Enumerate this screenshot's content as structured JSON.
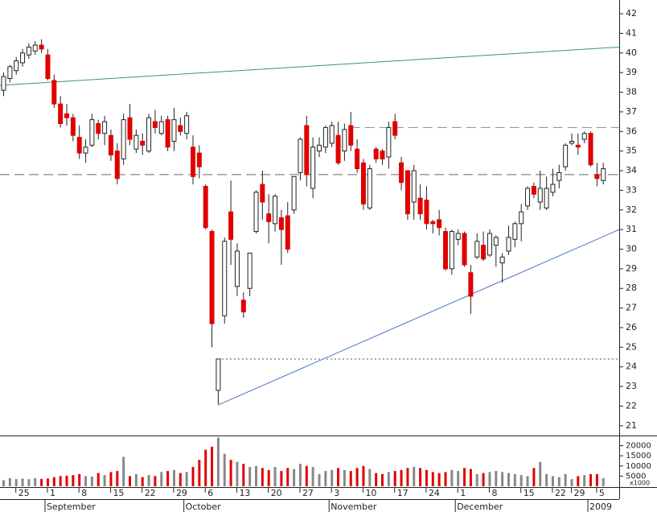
{
  "chart_data": {
    "type": "candlestick",
    "up_color": "#ffffff",
    "down_color": "#e00000",
    "wick_color": "#222222",
    "volume_up_color": "#888888",
    "volume_down_color": "#e00000",
    "ylim": [
      20.5,
      42.7
    ],
    "yticks": [
      21,
      22,
      23,
      24,
      25,
      26,
      27,
      28,
      29,
      30,
      31,
      32,
      33,
      34,
      35,
      36,
      37,
      38,
      39,
      40,
      41,
      42
    ],
    "volume_ylim": [
      0,
      25000
    ],
    "volume_yticks": [
      5000,
      10000,
      15000,
      20000
    ],
    "volume_unit_label": "x1000",
    "categories": [
      null,
      null,
      "25",
      null,
      null,
      null,
      null,
      "1",
      null,
      null,
      null,
      null,
      "8",
      null,
      null,
      null,
      null,
      "15",
      null,
      null,
      null,
      null,
      "22",
      null,
      null,
      null,
      null,
      "29",
      null,
      null,
      null,
      null,
      "6",
      null,
      null,
      null,
      null,
      "13",
      null,
      null,
      null,
      null,
      "20",
      null,
      null,
      null,
      null,
      "27",
      null,
      null,
      null,
      null,
      "3",
      null,
      null,
      null,
      null,
      "10",
      null,
      null,
      null,
      null,
      "17",
      null,
      null,
      null,
      null,
      "24",
      null,
      null,
      null,
      null,
      "1",
      null,
      null,
      null,
      null,
      "8",
      null,
      null,
      null,
      null,
      "15",
      null,
      null,
      null,
      null,
      "22",
      null,
      null,
      "29",
      null,
      null,
      null,
      "5",
      null
    ],
    "month_labels": [
      null,
      null,
      null,
      null,
      null,
      null,
      null,
      "September",
      null,
      null,
      null,
      null,
      null,
      null,
      null,
      null,
      null,
      null,
      null,
      null,
      null,
      null,
      null,
      null,
      null,
      null,
      null,
      null,
      null,
      "October",
      null,
      null,
      null,
      null,
      null,
      null,
      null,
      null,
      null,
      null,
      null,
      null,
      null,
      null,
      null,
      null,
      null,
      null,
      null,
      null,
      null,
      null,
      "November",
      null,
      null,
      null,
      null,
      null,
      null,
      null,
      null,
      null,
      null,
      null,
      null,
      null,
      null,
      null,
      null,
      null,
      null,
      null,
      "December",
      null,
      null,
      null,
      null,
      null,
      null,
      null,
      null,
      null,
      null,
      null,
      null,
      null,
      null,
      null,
      null,
      null,
      null,
      null,
      null,
      "2009",
      null,
      null
    ],
    "open": [
      38.1,
      38.7,
      39.1,
      39.5,
      39.9,
      40.1,
      40.4,
      39.9,
      38.6,
      37.4,
      36.9,
      36.7,
      35.7,
      34.9,
      35.3,
      36.4,
      35.9,
      35.8,
      35.0,
      34.6,
      36.7,
      35.1,
      35.5,
      35.0,
      36.5,
      35.9,
      36.6,
      35.5,
      36.3,
      35.9,
      35.2,
      34.9,
      33.2,
      30.9,
      22.8,
      26.6,
      31.9,
      28.1,
      27.4,
      28.0,
      30.9,
      33.3,
      31.8,
      31.3,
      31.6,
      31.7,
      32.0,
      33.9,
      36.3,
      33.1,
      35.0,
      35.2,
      35.4,
      35.8,
      35.0,
      36.3,
      35.1,
      34.4,
      32.1,
      35.1,
      35.0,
      34.7,
      36.5,
      34.4,
      34.0,
      32.4,
      32.6,
      32.5,
      31.4,
      31.5,
      30.9,
      29.0,
      30.5,
      30.8,
      28.8,
      29.6,
      30.2,
      29.7,
      30.2,
      29.3,
      29.9,
      30.5,
      31.3,
      32.2,
      33.2,
      32.4,
      32.1,
      32.9,
      33.5,
      34.2,
      35.4,
      35.3,
      35.6,
      35.9,
      33.8,
      33.5
    ],
    "high": [
      39.0,
      39.4,
      39.8,
      40.2,
      40.5,
      40.6,
      40.7,
      40.2,
      38.9,
      37.8,
      37.4,
      36.9,
      36.3,
      35.6,
      36.9,
      36.6,
      36.8,
      36.1,
      35.4,
      36.9,
      37.4,
      36.1,
      35.9,
      36.9,
      37.1,
      36.8,
      36.8,
      37.2,
      36.7,
      37.0,
      35.8,
      35.3,
      33.3,
      31.0,
      24.4,
      30.6,
      33.5,
      30.3,
      27.8,
      29.8,
      33.0,
      34.0,
      32.8,
      32.8,
      32.0,
      32.4,
      33.7,
      35.7,
      36.8,
      35.7,
      35.7,
      36.3,
      36.5,
      36.5,
      36.4,
      37.0,
      35.6,
      34.6,
      34.3,
      35.2,
      35.1,
      36.5,
      36.9,
      34.7,
      34.0,
      34.3,
      33.3,
      33.2,
      31.5,
      32.0,
      31.1,
      31.0,
      31.0,
      30.9,
      29.2,
      30.8,
      30.9,
      31.0,
      30.7,
      29.8,
      31.2,
      31.4,
      32.3,
      33.2,
      33.4,
      34.0,
      33.7,
      34.1,
      34.3,
      35.4,
      35.9,
      35.9,
      36.0,
      36.0,
      34.4,
      34.4
    ],
    "low": [
      37.8,
      38.5,
      38.9,
      39.3,
      39.7,
      39.9,
      40.0,
      38.6,
      37.2,
      36.2,
      36.3,
      35.5,
      34.6,
      34.4,
      35.2,
      35.6,
      35.3,
      34.5,
      33.3,
      34.3,
      35.3,
      34.9,
      34.8,
      34.9,
      35.9,
      35.8,
      35.0,
      35.0,
      35.8,
      35.6,
      33.3,
      33.6,
      31.0,
      25.0,
      22.1,
      26.2,
      29.2,
      27.6,
      26.5,
      27.6,
      30.8,
      31.5,
      30.3,
      30.9,
      29.2,
      29.8,
      31.8,
      33.5,
      33.2,
      32.6,
      34.7,
      34.9,
      35.2,
      34.3,
      34.5,
      35.0,
      33.9,
      32.0,
      32.0,
      34.4,
      34.3,
      34.1,
      35.6,
      33.0,
      31.5,
      31.5,
      31.5,
      31.0,
      30.8,
      30.7,
      28.9,
      28.7,
      30.2,
      29.1,
      26.7,
      29.5,
      29.4,
      29.6,
      29.1,
      28.3,
      29.7,
      30.1,
      30.4,
      32.0,
      32.6,
      32.0,
      32.0,
      32.7,
      33.1,
      34.0,
      35.3,
      34.8,
      35.4,
      34.2,
      33.2,
      33.3
    ],
    "close": [
      38.8,
      39.3,
      39.6,
      40.0,
      40.3,
      40.4,
      40.2,
      38.7,
      37.4,
      36.4,
      36.7,
      35.8,
      34.9,
      35.2,
      36.6,
      35.9,
      36.5,
      34.8,
      33.6,
      36.6,
      35.6,
      35.8,
      35.3,
      36.7,
      36.2,
      36.5,
      35.2,
      36.6,
      36.0,
      36.8,
      33.7,
      34.2,
      31.1,
      26.2,
      24.4,
      30.4,
      30.5,
      29.9,
      26.8,
      29.8,
      32.9,
      32.4,
      31.4,
      32.7,
      31.0,
      30.0,
      33.7,
      35.6,
      33.8,
      35.2,
      35.3,
      36.2,
      36.3,
      34.4,
      36.1,
      35.3,
      34.1,
      32.3,
      34.1,
      34.6,
      34.6,
      36.2,
      35.8,
      33.4,
      31.8,
      34.0,
      31.8,
      31.3,
      31.3,
      31.1,
      29.0,
      30.9,
      30.8,
      29.2,
      27.6,
      30.4,
      29.5,
      30.8,
      30.6,
      29.6,
      30.6,
      31.3,
      31.9,
      33.1,
      32.8,
      33.1,
      33.1,
      33.3,
      33.9,
      35.3,
      35.5,
      35.2,
      35.9,
      34.3,
      33.6,
      34.1
    ],
    "volume": [
      3000,
      4000,
      3500,
      3800,
      3500,
      4000,
      3600,
      3800,
      4500,
      5000,
      5200,
      5500,
      6000,
      5000,
      4800,
      6500,
      5500,
      7000,
      7500,
      14500,
      5000,
      6000,
      4500,
      5500,
      5000,
      7000,
      7500,
      8000,
      6500,
      7000,
      9500,
      13000,
      18000,
      19500,
      24000,
      16000,
      13000,
      12000,
      11000,
      9500,
      10000,
      9000,
      8000,
      9500,
      7500,
      9000,
      8500,
      11000,
      10000,
      9500,
      6000,
      7500,
      8000,
      9000,
      8000,
      7500,
      9000,
      10000,
      8500,
      6500,
      6000,
      7000,
      7500,
      8000,
      9000,
      9500,
      9000,
      8000,
      7000,
      6500,
      7000,
      8000,
      7500,
      9000,
      8500,
      6000,
      6500,
      7000,
      7500,
      7000,
      6500,
      6000,
      5500,
      5000,
      9000,
      12000,
      6000,
      5000,
      4500,
      6000,
      3500,
      5000,
      5500,
      6000,
      6000,
      4000
    ],
    "lines": [
      {
        "color": "#3a9a5a",
        "style": "solid",
        "x": [
          -0.5,
          97.6
        ],
        "y": [
          38.35,
          40.3
        ]
      },
      {
        "color": "#666666",
        "style": "dashed",
        "x": [
          -0.5,
          97.6
        ],
        "y": [
          33.8,
          33.8
        ]
      },
      {
        "color": "#7a8fb0",
        "style": "dashed",
        "x": [
          55,
          97.6
        ],
        "y": [
          36.2,
          36.2
        ]
      },
      {
        "color": "#555555",
        "style": "dotted",
        "x": [
          34,
          97.6
        ],
        "y": [
          24.4,
          24.4
        ]
      },
      {
        "color": "#4a72c8",
        "style": "solid",
        "x": [
          34,
          97.6
        ],
        "y": [
          22.05,
          31.0
        ]
      }
    ]
  }
}
